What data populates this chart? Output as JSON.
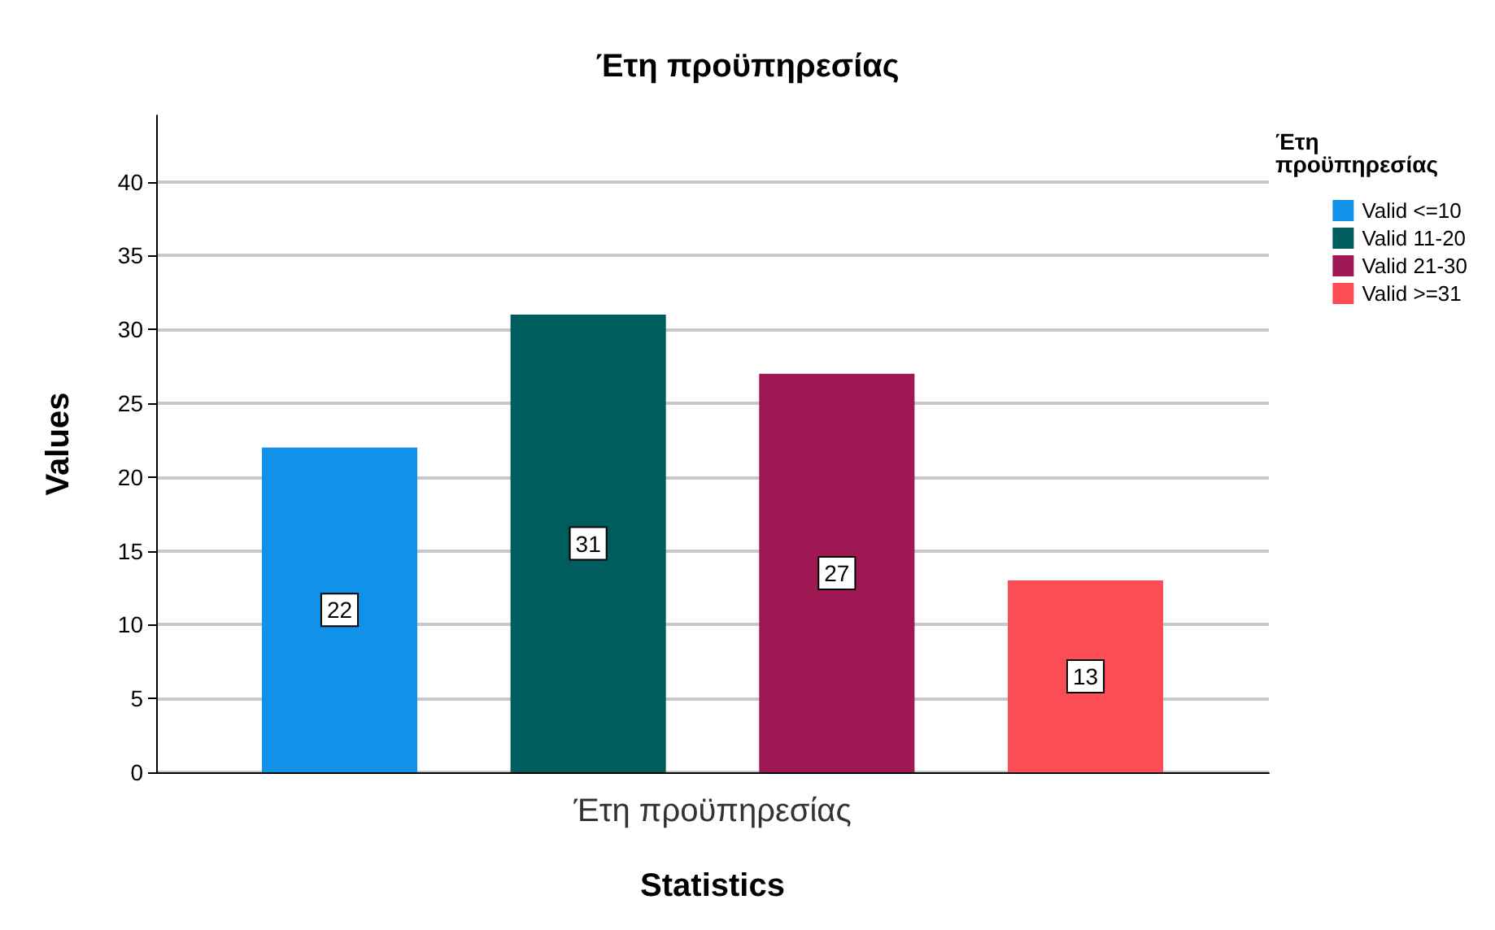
{
  "chart_data": {
    "type": "bar",
    "title": "Έτη προϋπηρεσίας",
    "xlabel": "Statistics",
    "ylabel": "Values",
    "legend_title": "Έτη προϋπηρεσίας",
    "categories": [
      "Έτη προϋπηρεσίας"
    ],
    "series": [
      {
        "name": "Valid <=10",
        "color": "#1192e8",
        "values": [
          22
        ]
      },
      {
        "name": "Valid 11-20",
        "color": "#005d5d",
        "values": [
          31
        ]
      },
      {
        "name": "Valid 21-30",
        "color": "#9f1853",
        "values": [
          27
        ]
      },
      {
        "name": "Valid >=31",
        "color": "#fa4d56",
        "values": [
          13
        ]
      }
    ],
    "ylim": [
      0,
      44.5
    ],
    "yticks": [
      0,
      5,
      10,
      15,
      20,
      25,
      30,
      35,
      40
    ],
    "grid": "y",
    "legend": "right",
    "data_labels": true
  }
}
